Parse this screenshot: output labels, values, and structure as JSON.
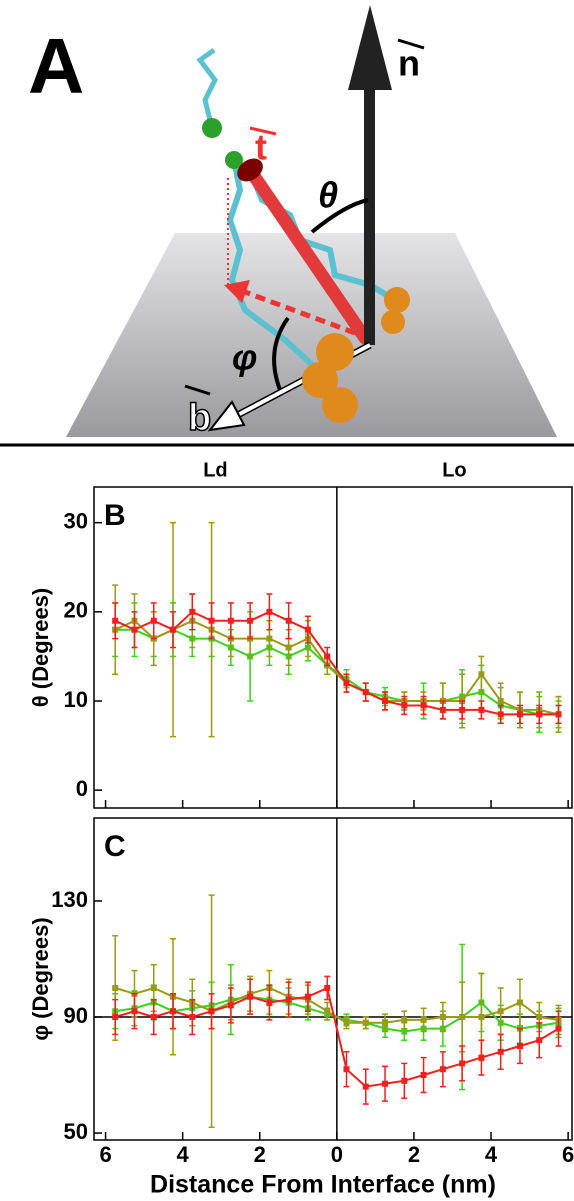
{
  "diagram": {
    "panel_label": "A",
    "normal": "n",
    "tail": "t",
    "base": "b",
    "tilt_angle": "θ",
    "azimuth_angle": "φ"
  },
  "chart_data": [
    {
      "type": "line",
      "panel_label": "B",
      "ylabel": "θ (Degrees)",
      "region_labels": [
        "Ld",
        "Lo"
      ],
      "x": [
        -5.75,
        -5.25,
        -4.75,
        -4.25,
        -3.75,
        -3.25,
        -2.75,
        -2.25,
        -1.75,
        -1.25,
        -0.75,
        -0.25,
        0.25,
        0.75,
        1.25,
        1.75,
        2.25,
        2.75,
        3.25,
        3.75,
        4.25,
        4.75,
        5.25,
        5.75
      ],
      "xlim": [
        -6.3,
        6.1
      ],
      "ylim": [
        -2,
        34
      ],
      "xticks": [
        {
          "value": -6,
          "label": "6"
        },
        {
          "value": -4,
          "label": "4"
        },
        {
          "value": -2,
          "label": "2"
        },
        0,
        2,
        4,
        6
      ],
      "yticks": [
        0,
        10,
        20,
        30
      ],
      "vline": 0,
      "series": [
        {
          "color": "#3fcf1f",
          "values": [
            18,
            18,
            17,
            18,
            17,
            17,
            16,
            15,
            16,
            15,
            16,
            14,
            12.5,
            11,
            10.5,
            10,
            10,
            10,
            10.5,
            11,
            9.5,
            9,
            8.5,
            8.5
          ],
          "errors": [
            3,
            3,
            2,
            3,
            2,
            2,
            2,
            5,
            2,
            2,
            1.5,
            1,
            1,
            1,
            1,
            1,
            2,
            2,
            3,
            3,
            2,
            2,
            2,
            1.5
          ]
        },
        {
          "color": "#9a9a18",
          "values": [
            18,
            19,
            17,
            18,
            19,
            18,
            17,
            17,
            17,
            16,
            17,
            14,
            12,
            11,
            10,
            10,
            10,
            10,
            10,
            13,
            10,
            9,
            9,
            8.5
          ],
          "errors": [
            5,
            3,
            3,
            12,
            3,
            12,
            2,
            2,
            2,
            2,
            2,
            1,
            1,
            1,
            1,
            1,
            1,
            2,
            3,
            2,
            2,
            2,
            2,
            2
          ]
        },
        {
          "color": "#ee2020",
          "values": [
            19,
            18,
            19,
            18,
            20,
            19,
            19,
            19,
            20,
            19,
            18,
            15,
            12,
            11,
            10,
            9.5,
            9.5,
            9,
            9,
            9,
            8.5,
            8.5,
            8.5,
            8.5
          ],
          "errors": [
            2,
            2,
            2,
            2,
            2,
            2,
            2,
            2,
            2,
            2,
            1.5,
            1,
            1,
            1,
            1,
            1,
            1,
            1,
            1,
            1,
            1,
            1,
            1,
            1
          ]
        }
      ]
    },
    {
      "type": "line",
      "panel_label": "C",
      "ylabel": "φ (Degrees)",
      "xlabel": "Distance From Interface (nm)",
      "x": [
        -5.75,
        -5.25,
        -4.75,
        -4.25,
        -3.75,
        -3.25,
        -2.75,
        -2.25,
        -1.75,
        -1.25,
        -0.75,
        -0.25,
        0.25,
        0.75,
        1.25,
        1.75,
        2.25,
        2.75,
        3.25,
        3.75,
        4.25,
        4.75,
        5.25,
        5.75
      ],
      "xlim": [
        -6.3,
        6.1
      ],
      "ylim": [
        47.6,
        158.6
      ],
      "xticks": [
        {
          "value": -6,
          "label": "6"
        },
        {
          "value": -4,
          "label": "4"
        },
        {
          "value": -2,
          "label": "2"
        },
        0,
        2,
        4,
        6
      ],
      "yticks": [
        50,
        90,
        130
      ],
      "vline": 0,
      "hline": 90,
      "series": [
        {
          "color": "#3fcf1f",
          "values": [
            92,
            93,
            95,
            92,
            93,
            94,
            96,
            97,
            96,
            95,
            93,
            91,
            89,
            88,
            86,
            85,
            86,
            86,
            90,
            95,
            88,
            86,
            87,
            88
          ],
          "errors": [
            6,
            6,
            6,
            6,
            6,
            8,
            12,
            6,
            5,
            5,
            4,
            2,
            2,
            2,
            3,
            3,
            4,
            6,
            25,
            10,
            6,
            5,
            5,
            5
          ]
        },
        {
          "color": "#9a9a18",
          "values": [
            100,
            98,
            100,
            97,
            95,
            92,
            95,
            98,
            100,
            97,
            96,
            92,
            88,
            88,
            88,
            89,
            89,
            90,
            90,
            90,
            92,
            95,
            90,
            89
          ],
          "errors": [
            18,
            8,
            8,
            20,
            8,
            40,
            6,
            6,
            6,
            6,
            5,
            3,
            2,
            2,
            3,
            3,
            4,
            5,
            12,
            15,
            8,
            8,
            5,
            5
          ]
        },
        {
          "color": "#ee2020",
          "values": [
            90,
            92,
            90,
            92,
            90,
            92,
            94,
            97,
            95,
            96,
            97,
            100,
            72,
            66,
            67,
            68,
            70,
            72,
            74,
            76,
            78,
            80,
            82,
            86
          ],
          "errors": [
            6,
            6,
            6,
            6,
            6,
            6,
            6,
            6,
            6,
            6,
            5,
            4,
            6,
            6,
            6,
            6,
            6,
            6,
            6,
            6,
            6,
            6,
            6,
            6
          ]
        }
      ]
    }
  ]
}
